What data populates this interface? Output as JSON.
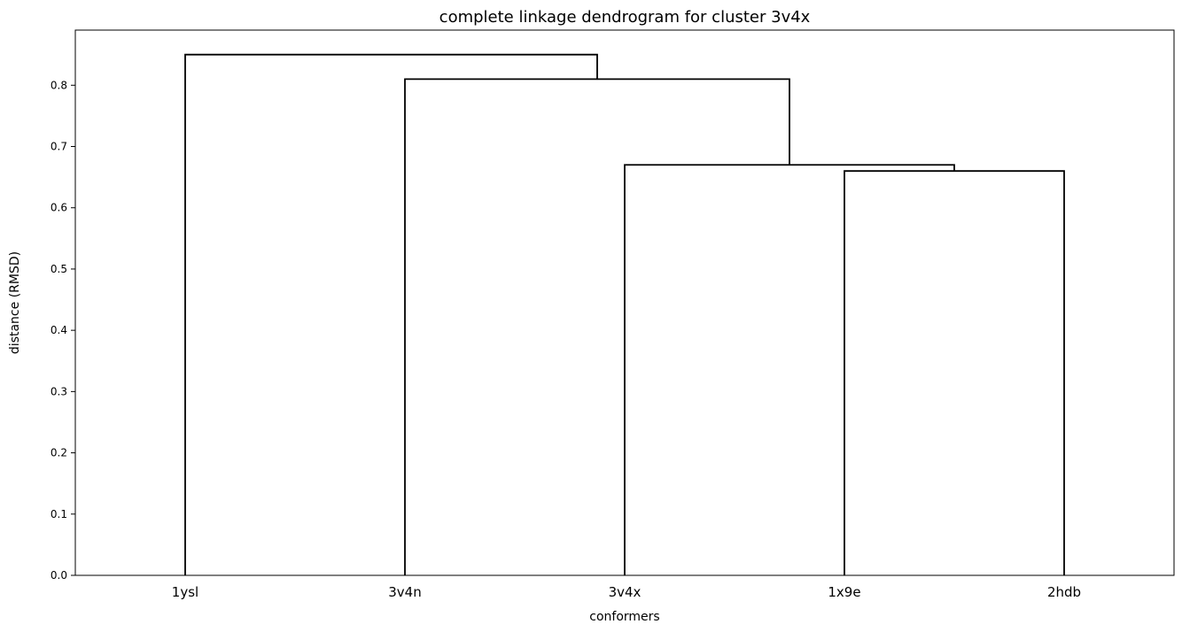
{
  "chart_data": {
    "type": "dendrogram",
    "title": "complete linkage dendrogram for cluster 3v4x",
    "xlabel": "conformers",
    "ylabel": "distance (RMSD)",
    "leaves": [
      "1ysl",
      "3v4n",
      "3v4x",
      "1x9e",
      "2hdb"
    ],
    "ylim": [
      0,
      0.89
    ],
    "yticks": [
      0.0,
      0.1,
      0.2,
      0.3,
      0.4,
      0.5,
      0.6,
      0.7,
      0.8
    ],
    "ytick_labels": [
      "0.0",
      "0.1",
      "0.2",
      "0.3",
      "0.4",
      "0.5",
      "0.6",
      "0.7",
      "0.8"
    ],
    "merges": [
      {
        "left": "1x9e",
        "right": "2hdb",
        "height": 0.66
      },
      {
        "left": "3v4x",
        "right": "1x9e+2hdb",
        "height": 0.67
      },
      {
        "left": "3v4n",
        "right": "3v4x+1x9e+2hdb",
        "height": 0.81
      },
      {
        "left": "1ysl",
        "right": "3v4n+3v4x+1x9e+2hdb",
        "height": 0.85
      }
    ],
    "line_color": "#000000",
    "grid": false
  }
}
